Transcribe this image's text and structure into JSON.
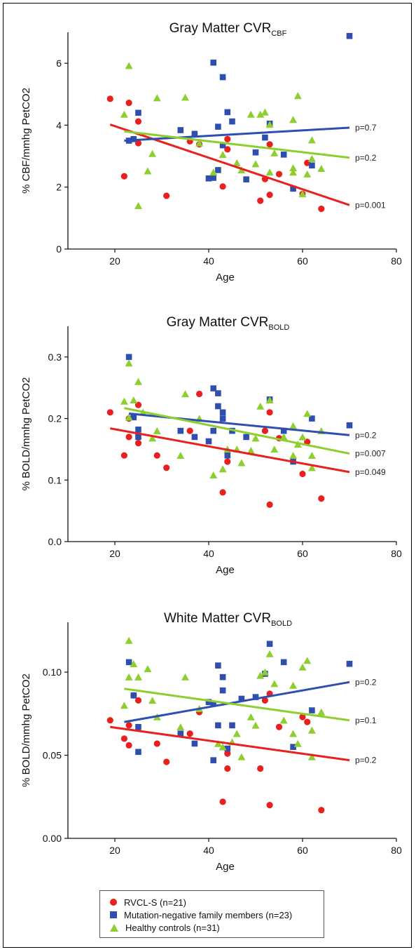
{
  "colors": {
    "rvcl": "#e8201e",
    "mutneg": "#2e4fb0",
    "healthy": "#8ccf2e"
  },
  "legend": {
    "items": [
      {
        "label": "RVCL-S (n=21)",
        "series": "rvcl",
        "marker": "circle"
      },
      {
        "label": "Mutation-negative family members (n=23)",
        "series": "mutneg",
        "marker": "square"
      },
      {
        "label": "Healthy controls (n=31)",
        "series": "healthy",
        "marker": "triangle"
      }
    ]
  },
  "chart_data": [
    {
      "type": "scatter",
      "title": "Gray Matter CVR",
      "title_sub": "CBF",
      "xlabel": "Age",
      "ylabel": "% CBF/mmhg PetCO2",
      "xlim": [
        10,
        80
      ],
      "ylim": [
        0,
        7
      ],
      "xticks": [
        20,
        40,
        60,
        80
      ],
      "yticks": [
        0,
        2,
        4,
        6
      ],
      "ytick_labels": [
        "0",
        "2",
        "4",
        "6"
      ],
      "grid": false,
      "series": [
        {
          "key": "rvcl",
          "points": [
            [
              19,
              4.85
            ],
            [
              22,
              2.35
            ],
            [
              23,
              4.72
            ],
            [
              25,
              4.12
            ],
            [
              25,
              3.42
            ],
            [
              31,
              1.72
            ],
            [
              36,
              3.48
            ],
            [
              38,
              3.38
            ],
            [
              43,
              2.02
            ],
            [
              44,
              3.22
            ],
            [
              44,
              3.55
            ],
            [
              51,
              1.56
            ],
            [
              52,
              2.26
            ],
            [
              53,
              1.75
            ],
            [
              53,
              3.38
            ],
            [
              55,
              2.42
            ],
            [
              60,
              1.78
            ],
            [
              61,
              2.78
            ],
            [
              64,
              1.3
            ]
          ],
          "fit": {
            "x": [
              19,
              70
            ],
            "y": [
              4.02,
              1.42
            ],
            "p_label": "p=0.001"
          }
        },
        {
          "key": "mutneg",
          "points": [
            [
              23,
              3.5
            ],
            [
              24,
              3.55
            ],
            [
              25,
              4.4
            ],
            [
              34,
              3.84
            ],
            [
              37,
              3.72
            ],
            [
              40,
              2.28
            ],
            [
              41,
              2.3
            ],
            [
              41,
              6.02
            ],
            [
              42,
              2.55
            ],
            [
              42,
              3.95
            ],
            [
              43,
              3.35
            ],
            [
              43,
              5.55
            ],
            [
              44,
              4.42
            ],
            [
              45,
              4.12
            ],
            [
              48,
              2.25
            ],
            [
              50,
              3.12
            ],
            [
              52,
              3.6
            ],
            [
              53,
              4.05
            ],
            [
              56,
              3.05
            ],
            [
              58,
              1.95
            ],
            [
              62,
              2.7
            ],
            [
              70,
              6.88
            ]
          ],
          "fit": {
            "x": [
              22,
              70
            ],
            "y": [
              3.5,
              3.92
            ],
            "p_label": "p=0.7"
          }
        },
        {
          "key": "healthy",
          "points": [
            [
              22,
              4.35
            ],
            [
              23,
              5.92
            ],
            [
              25,
              1.4
            ],
            [
              27,
              2.52
            ],
            [
              28,
              3.08
            ],
            [
              29,
              4.88
            ],
            [
              35,
              4.9
            ],
            [
              38,
              3.42
            ],
            [
              41,
              2.48
            ],
            [
              43,
              3.05
            ],
            [
              46,
              2.78
            ],
            [
              47,
              2.55
            ],
            [
              49,
              4.35
            ],
            [
              50,
              2.75
            ],
            [
              51,
              4.35
            ],
            [
              52,
              4.42
            ],
            [
              53,
              2.48
            ],
            [
              53,
              4.02
            ],
            [
              54,
              3.1
            ],
            [
              58,
              2.48
            ],
            [
              58,
              2.62
            ],
            [
              58,
              4.18
            ],
            [
              59,
              4.95
            ],
            [
              60,
              1.78
            ],
            [
              61,
              2.42
            ],
            [
              62,
              2.92
            ],
            [
              62,
              3.52
            ],
            [
              64,
              2.6
            ]
          ],
          "fit": {
            "x": [
              22,
              70
            ],
            "y": [
              3.8,
              2.95
            ],
            "p_label": "p=0.2"
          }
        }
      ]
    },
    {
      "type": "scatter",
      "title": "Gray Matter CVR",
      "title_sub": "BOLD",
      "xlabel": "Age",
      "ylabel": "% BOLD/mmhg PetCO2",
      "xlim": [
        10,
        80
      ],
      "ylim": [
        0,
        0.35
      ],
      "xticks": [
        20,
        40,
        60,
        80
      ],
      "yticks": [
        0,
        0.1,
        0.2,
        0.3
      ],
      "ytick_labels": [
        "0.0",
        "0.1",
        "0.2",
        "0.3"
      ],
      "grid": false,
      "series": [
        {
          "key": "rvcl",
          "points": [
            [
              19,
              0.21
            ],
            [
              22,
              0.14
            ],
            [
              23,
              0.17
            ],
            [
              23,
              0.2
            ],
            [
              25,
              0.16
            ],
            [
              25,
              0.222
            ],
            [
              29,
              0.14
            ],
            [
              31,
              0.12
            ],
            [
              36,
              0.18
            ],
            [
              38,
              0.24
            ],
            [
              43,
              0.08
            ],
            [
              44,
              0.13
            ],
            [
              52,
              0.18
            ],
            [
              53,
              0.06
            ],
            [
              53,
              0.21
            ],
            [
              55,
              0.168
            ],
            [
              60,
              0.11
            ],
            [
              61,
              0.162
            ],
            [
              64,
              0.07
            ]
          ],
          "fit": {
            "x": [
              19,
              70
            ],
            "y": [
              0.184,
              0.113
            ],
            "p_label": "p=0.049"
          }
        },
        {
          "key": "mutneg",
          "points": [
            [
              23,
              0.3
            ],
            [
              24,
              0.202
            ],
            [
              25,
              0.17
            ],
            [
              25,
              0.182
            ],
            [
              34,
              0.18
            ],
            [
              37,
              0.17
            ],
            [
              40,
              0.163
            ],
            [
              41,
              0.18
            ],
            [
              41,
              0.249
            ],
            [
              42,
              0.22
            ],
            [
              42,
              0.241
            ],
            [
              43,
              0.2
            ],
            [
              43,
              0.21
            ],
            [
              44,
              0.14
            ],
            [
              45,
              0.18
            ],
            [
              48,
              0.17
            ],
            [
              53,
              0.231
            ],
            [
              56,
              0.18
            ],
            [
              58,
              0.13
            ],
            [
              62,
              0.2
            ],
            [
              70,
              0.189
            ]
          ],
          "fit": {
            "x": [
              23,
              70
            ],
            "y": [
              0.208,
              0.173
            ],
            "p_label": "p=0.2"
          }
        },
        {
          "key": "healthy",
          "points": [
            [
              22,
              0.228
            ],
            [
              23,
              0.202
            ],
            [
              23,
              0.29
            ],
            [
              24,
              0.23
            ],
            [
              25,
              0.26
            ],
            [
              26,
              0.21
            ],
            [
              28,
              0.168
            ],
            [
              29,
              0.18
            ],
            [
              34,
              0.14
            ],
            [
              35,
              0.24
            ],
            [
              38,
              0.2
            ],
            [
              41,
              0.108
            ],
            [
              43,
              0.118
            ],
            [
              44,
              0.15
            ],
            [
              46,
              0.15
            ],
            [
              47,
              0.128
            ],
            [
              49,
              0.148
            ],
            [
              50,
              0.168
            ],
            [
              51,
              0.22
            ],
            [
              53,
              0.23
            ],
            [
              54,
              0.15
            ],
            [
              56,
              0.17
            ],
            [
              58,
              0.14
            ],
            [
              58,
              0.188
            ],
            [
              59,
              0.158
            ],
            [
              60,
              0.17
            ],
            [
              61,
              0.208
            ],
            [
              62,
              0.14
            ],
            [
              62,
              0.12
            ],
            [
              64,
              0.18
            ]
          ],
          "fit": {
            "x": [
              22,
              70
            ],
            "y": [
              0.217,
              0.143
            ],
            "p_label": "p=0.007"
          }
        }
      ]
    },
    {
      "type": "scatter",
      "title": "White Matter CVR",
      "title_sub": "BOLD",
      "xlabel": "Age",
      "ylabel": "% BOLD/mmhg PetCO2",
      "xlim": [
        10,
        80
      ],
      "ylim": [
        0,
        0.13
      ],
      "xticks": [
        20,
        40,
        60,
        80
      ],
      "yticks": [
        0,
        0.05,
        0.1
      ],
      "ytick_labels": [
        "0.00",
        "0.05",
        "0.10"
      ],
      "grid": false,
      "series": [
        {
          "key": "rvcl",
          "points": [
            [
              19,
              0.071
            ],
            [
              22,
              0.06
            ],
            [
              23,
              0.068
            ],
            [
              23,
              0.056
            ],
            [
              24,
              0.086
            ],
            [
              25,
              0.083
            ],
            [
              29,
              0.057
            ],
            [
              31,
              0.046
            ],
            [
              36,
              0.063
            ],
            [
              38,
              0.076
            ],
            [
              43,
              0.022
            ],
            [
              44,
              0.042
            ],
            [
              44,
              0.051
            ],
            [
              51,
              0.042
            ],
            [
              52,
              0.083
            ],
            [
              53,
              0.02
            ],
            [
              53,
              0.087
            ],
            [
              55,
              0.067
            ],
            [
              60,
              0.073
            ],
            [
              61,
              0.07
            ],
            [
              64,
              0.017
            ]
          ],
          "fit": {
            "x": [
              19,
              70
            ],
            "y": [
              0.067,
              0.047
            ],
            "p_label": "p=0.2"
          }
        },
        {
          "key": "mutneg",
          "points": [
            [
              23,
              0.106
            ],
            [
              24,
              0.086
            ],
            [
              25,
              0.052
            ],
            [
              25,
              0.067
            ],
            [
              34,
              0.063
            ],
            [
              37,
              0.057
            ],
            [
              40,
              0.082
            ],
            [
              41,
              0.047
            ],
            [
              41,
              0.081
            ],
            [
              42,
              0.068
            ],
            [
              42,
              0.104
            ],
            [
              43,
              0.089
            ],
            [
              43,
              0.097
            ],
            [
              44,
              0.054
            ],
            [
              45,
              0.068
            ],
            [
              47,
              0.084
            ],
            [
              50,
              0.085
            ],
            [
              52,
              0.099
            ],
            [
              53,
              0.117
            ],
            [
              56,
              0.106
            ],
            [
              58,
              0.055
            ],
            [
              62,
              0.077
            ],
            [
              70,
              0.105
            ]
          ],
          "fit": {
            "x": [
              22,
              70
            ],
            "y": [
              0.07,
              0.094
            ],
            "p_label": "p=0.2"
          }
        },
        {
          "key": "healthy",
          "points": [
            [
              22,
              0.08
            ],
            [
              23,
              0.097
            ],
            [
              23,
              0.119
            ],
            [
              24,
              0.105
            ],
            [
              25,
              0.097
            ],
            [
              27,
              0.102
            ],
            [
              28,
              0.083
            ],
            [
              29,
              0.073
            ],
            [
              34,
              0.067
            ],
            [
              35,
              0.097
            ],
            [
              38,
              0.078
            ],
            [
              42,
              0.057
            ],
            [
              43,
              0.055
            ],
            [
              45,
              0.058
            ],
            [
              46,
              0.063
            ],
            [
              47,
              0.049
            ],
            [
              49,
              0.073
            ],
            [
              50,
              0.068
            ],
            [
              51,
              0.098
            ],
            [
              52,
              0.1
            ],
            [
              53,
              0.111
            ],
            [
              54,
              0.093
            ],
            [
              56,
              0.071
            ],
            [
              58,
              0.092
            ],
            [
              58,
              0.063
            ],
            [
              59,
              0.057
            ],
            [
              60,
              0.103
            ],
            [
              61,
              0.107
            ],
            [
              62,
              0.065
            ],
            [
              62,
              0.049
            ],
            [
              64,
              0.076
            ]
          ],
          "fit": {
            "x": [
              22,
              70
            ],
            "y": [
              0.09,
              0.071
            ],
            "p_label": "p=0.1"
          }
        }
      ]
    }
  ]
}
